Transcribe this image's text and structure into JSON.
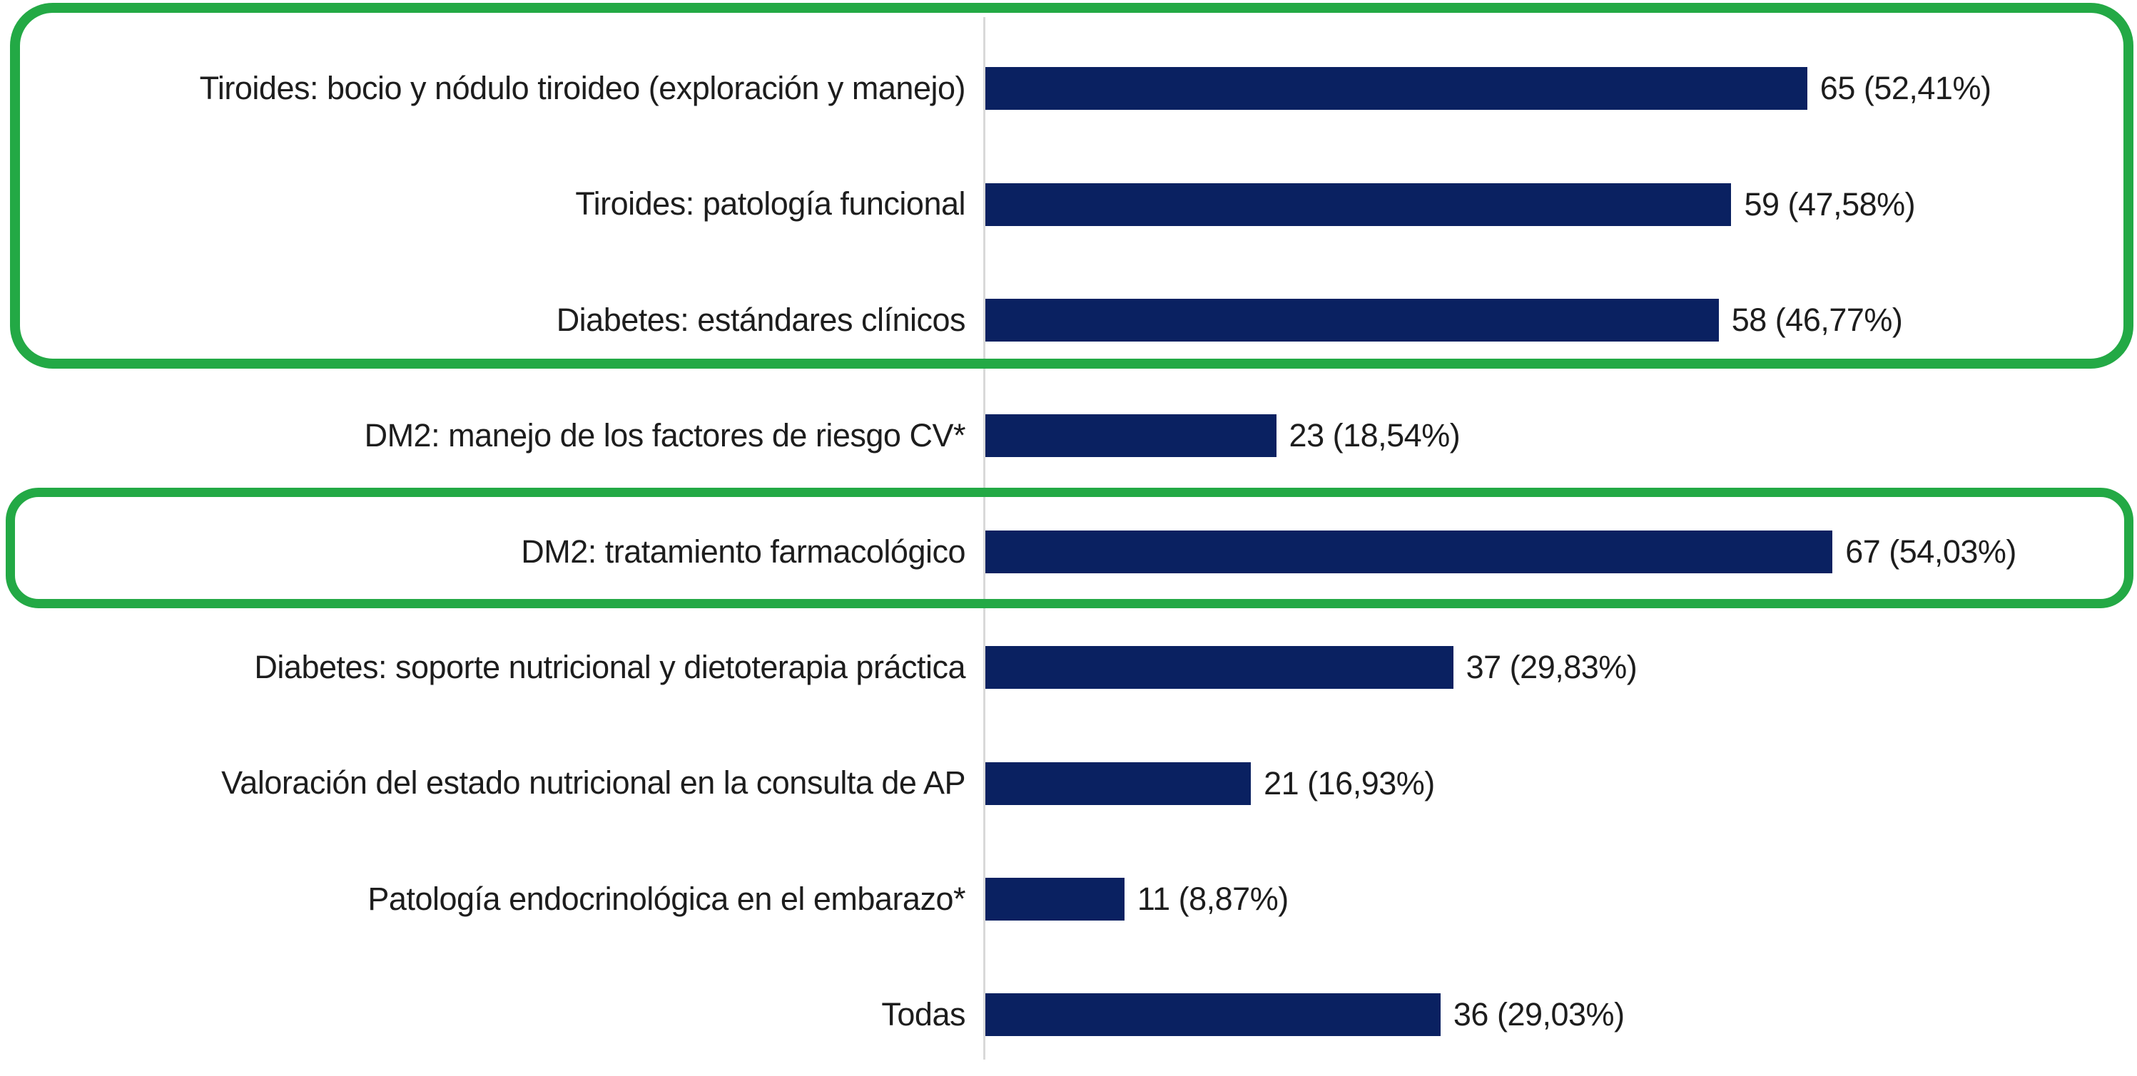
{
  "page": {
    "background": "#ffffff"
  },
  "chart_data": {
    "type": "bar",
    "orientation": "horizontal",
    "title": "",
    "xlabel": "",
    "ylabel": "",
    "grid": false,
    "legend": false,
    "xlim": [
      0,
      91
    ],
    "categories": [
      "Tiroides: bocio y nódulo tiroideo (exploración y manejo)",
      "Tiroides: patología funcional",
      "Diabetes: estándares clínicos",
      "DM2: manejo de los factores de riesgo CV*",
      "DM2: tratamiento farmacológico",
      "Diabetes: soporte nutricional y dietoterapia práctica",
      "Valoración del estado nutricional en la consulta de AP",
      "Patología endocrinológica en el embarazo*",
      "Todas"
    ],
    "values": [
      65,
      59,
      58,
      23,
      67,
      37,
      21,
      11,
      36
    ],
    "percentages": [
      52.41,
      47.58,
      46.77,
      18.54,
      54.03,
      29.83,
      16.93,
      8.87,
      29.03
    ],
    "value_labels": [
      "65 (52,41%)",
      "59 (47,58%)",
      "58 (46,77%)",
      "23 (18,54%)",
      "67 (54,03%)",
      "37 (29,83%)",
      "21 (16,93%)",
      "11 (8,87%)",
      "36 (29,03%)"
    ],
    "colors": {
      "bar": "#0a2161",
      "highlight": "#23a945",
      "axis": "#d9d9d9",
      "text": "#1d1d1d"
    },
    "highlights": [
      {
        "name": "top-three-topics",
        "rows": [
          0,
          1,
          2
        ]
      },
      {
        "name": "dm2-pharmacological-treatment",
        "rows": [
          4
        ]
      }
    ]
  }
}
